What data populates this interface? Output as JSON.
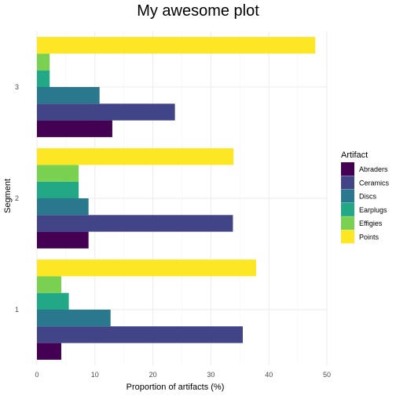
{
  "chart_data": {
    "type": "bar",
    "orientation": "horizontal",
    "layout": "grouped",
    "title": "My awesome plot",
    "xlabel": "Proportion of artifacts (%)",
    "ylabel": "Segment",
    "xlim": [
      0,
      50
    ],
    "xticks": [
      0,
      10,
      20,
      30,
      40,
      50
    ],
    "categories": [
      "1",
      "2",
      "3"
    ],
    "legend": {
      "title": "Artifact",
      "position": "right"
    },
    "grid": true,
    "series": [
      {
        "name": "Abraders",
        "color": "#440154",
        "values": [
          4.2,
          8.9,
          13
        ]
      },
      {
        "name": "Ceramics",
        "color": "#414487",
        "values": [
          35.5,
          33.8,
          23.8
        ]
      },
      {
        "name": "Discs",
        "color": "#2A788E",
        "values": [
          12.7,
          8.9,
          10.8
        ]
      },
      {
        "name": "Earplugs",
        "color": "#22A884",
        "values": [
          5.5,
          7.2,
          2.2
        ]
      },
      {
        "name": "Effigies",
        "color": "#7AD151",
        "values": [
          4.2,
          7.2,
          2.2
        ]
      },
      {
        "name": "Points",
        "color": "#FDE725",
        "values": [
          37.8,
          33.9,
          48
        ]
      }
    ]
  }
}
